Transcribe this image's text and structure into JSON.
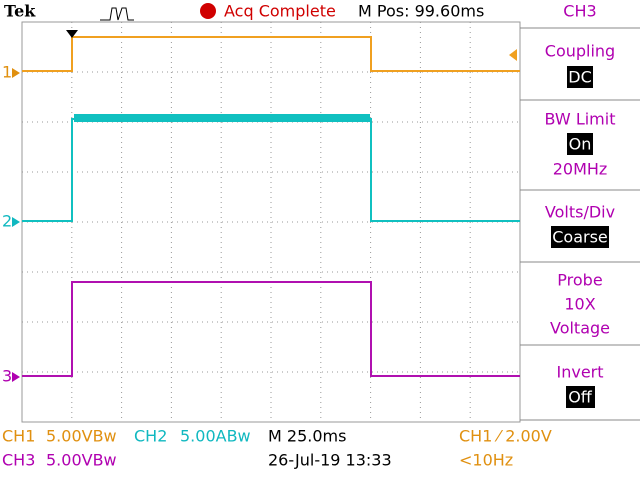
{
  "header": {
    "brand": "Tek",
    "status": "Acq Complete",
    "position": "M Pos: 99.60ms"
  },
  "menu": {
    "title": "CH3",
    "items": [
      {
        "label": "Coupling",
        "value": "DC"
      },
      {
        "label": "BW Limit",
        "value": "On",
        "note": "20MHz"
      },
      {
        "label": "Volts/Div",
        "value": "Coarse"
      },
      {
        "label": "Probe",
        "lines": [
          "10X",
          "Voltage"
        ]
      },
      {
        "label": "Invert",
        "value": "Off"
      }
    ]
  },
  "markers": [
    "1",
    "2",
    "3"
  ],
  "footer": {
    "ch1": {
      "name": "CH1",
      "scale": "5.00VBw"
    },
    "ch2": {
      "name": "CH2",
      "scale": "5.00ABw"
    },
    "ch3": {
      "name": "CH3",
      "scale": "5.00VBw"
    },
    "timebase": "M 25.0ms",
    "date": "26-Jul-19 13:33",
    "trigger": "CH1 ⁄ 2.00V",
    "frequency": "<10Hz"
  }
}
